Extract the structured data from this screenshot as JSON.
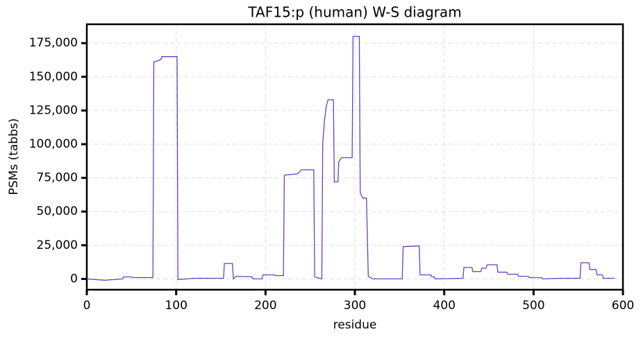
{
  "chart_data": {
    "type": "line",
    "title": "TAF15:p (human) W-S diagram",
    "xlabel": "residue",
    "ylabel": "PSMs (tabbs)",
    "grid": true,
    "xlim": [
      0,
      600
    ],
    "ylim": [
      -8000,
      189000
    ],
    "xticks": [
      0,
      100,
      200,
      300,
      400,
      500,
      600
    ],
    "yticks": [
      0,
      {
        "value": 25000,
        "label": "25,000"
      },
      {
        "value": 50000,
        "label": "50,000"
      },
      {
        "value": 75000,
        "label": "75,000"
      },
      {
        "value": 100000,
        "label": "100,000"
      },
      {
        "value": 125000,
        "label": "125,000"
      },
      {
        "value": 150000,
        "label": "150,000"
      },
      {
        "value": 175000,
        "label": "175,000"
      }
    ],
    "series": [
      {
        "color": "#6a3fc0",
        "x": [
          0,
          20,
          40,
          41,
          50,
          51,
          74,
          75,
          80,
          83,
          84,
          101,
          102,
          120,
          153,
          154,
          163,
          164,
          167,
          185,
          186,
          196,
          197,
          210,
          211,
          220,
          221,
          236,
          240,
          254,
          255,
          263,
          264,
          266,
          268,
          270,
          276,
          277,
          281,
          282,
          285,
          297,
          298,
          305,
          306,
          309,
          313,
          315,
          320,
          353,
          354,
          372,
          373,
          385,
          386,
          389,
          390,
          421,
          422,
          431,
          432,
          441,
          442,
          447,
          448,
          459,
          460,
          470,
          471,
          482,
          483,
          494,
          495,
          509,
          510,
          530,
          552,
          553,
          562,
          563,
          570,
          571,
          577,
          578,
          591
        ],
        "values": [
          0,
          -1000,
          0,
          1500,
          1500,
          1000,
          1000,
          161000,
          162000,
          163000,
          165000,
          165000,
          -500,
          500,
          500,
          11500,
          11500,
          0,
          2000,
          1500,
          0,
          0,
          3000,
          3000,
          2500,
          2500,
          77000,
          78000,
          81000,
          81000,
          1500,
          0,
          100000,
          118000,
          128000,
          133000,
          133000,
          72000,
          72000,
          87000,
          90000,
          90000,
          180000,
          180000,
          64000,
          60000,
          60000,
          2000,
          0,
          0,
          24000,
          24500,
          3000,
          3000,
          1500,
          1500,
          0,
          500,
          8500,
          8500,
          5500,
          5500,
          8000,
          8000,
          10500,
          10500,
          5000,
          5000,
          3500,
          3500,
          2000,
          2000,
          1000,
          1000,
          0,
          500,
          500,
          12000,
          12000,
          7000,
          7000,
          3000,
          3000,
          500,
          500
        ]
      }
    ]
  }
}
